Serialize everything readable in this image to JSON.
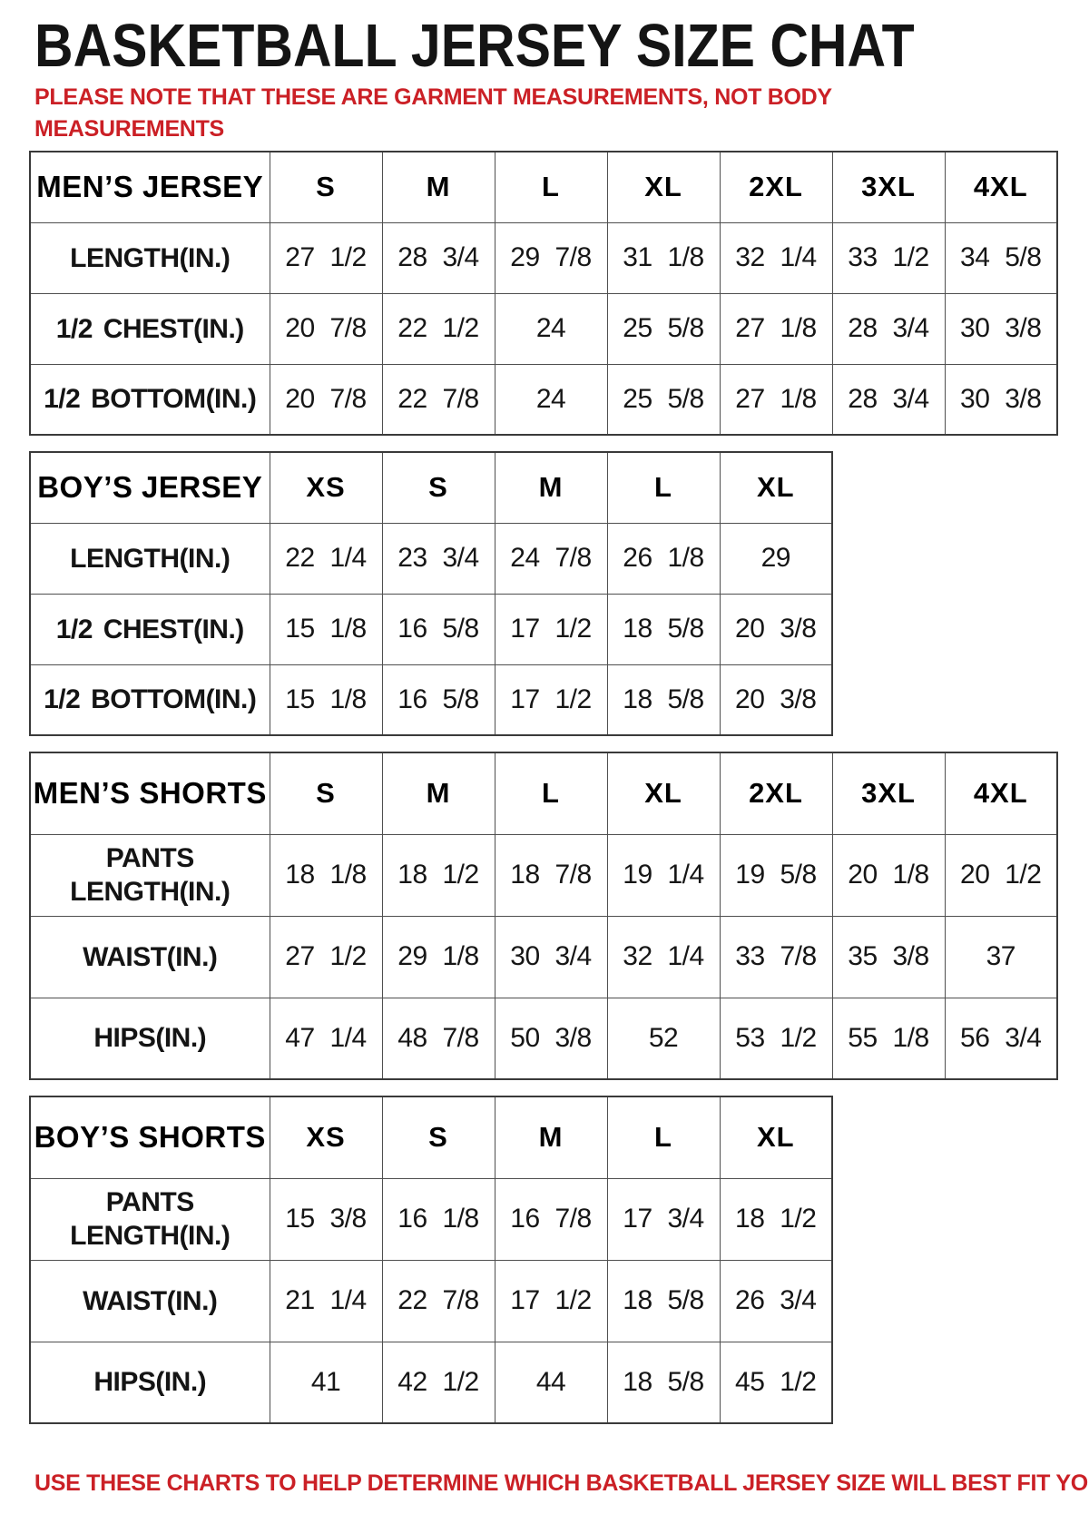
{
  "page": {
    "title": "BASKETBALL JERSEY SIZE CHAT",
    "note": "PLEASE NOTE THAT THESE ARE GARMENT MEASUREMENTS, NOT BODY MEASUREMENTS",
    "footer": "USE THESE CHARTS TO HELP DETERMINE WHICH BASKETBALL JERSEY SIZE WILL BEST FIT YOU.",
    "colors": {
      "header_bg": "#757575",
      "header_text": "#ffffff",
      "note_red": "#cb2026",
      "body_text": "#161616",
      "grid_line": "#4f4f4f"
    }
  },
  "tables": [
    {
      "title": "MEN’S JERSEY",
      "sizes": [
        "S",
        "M",
        "L",
        "XL",
        "2XL",
        "3XL",
        "4XL"
      ],
      "rows": [
        {
          "label": "LENGTH(IN.)",
          "values": [
            "27 1/2",
            "28 3/4",
            "29 7/8",
            "31 1/8",
            "32 1/4",
            "33 1/2",
            "34 5/8"
          ]
        },
        {
          "label": "1/2 CHEST(IN.)",
          "values": [
            "20 7/8",
            "22 1/2",
            "24",
            "25 5/8",
            "27 1/8",
            "28 3/4",
            "30 3/8"
          ]
        },
        {
          "label": "1/2 BOTTOM(IN.)",
          "values": [
            "20 7/8",
            "22 7/8",
            "24",
            "25 5/8",
            "27 1/8",
            "28 3/4",
            "30 3/8"
          ]
        }
      ]
    },
    {
      "title": "BOY’S JERSEY",
      "sizes": [
        "XS",
        "S",
        "M",
        "L",
        "XL"
      ],
      "rows": [
        {
          "label": "LENGTH(IN.)",
          "values": [
            "22 1/4",
            "23 3/4",
            "24 7/8",
            "26 1/8",
            "29"
          ]
        },
        {
          "label": "1/2 CHEST(IN.)",
          "values": [
            "15 1/8",
            "16 5/8",
            "17 1/2",
            "18 5/8",
            "20 3/8"
          ]
        },
        {
          "label": "1/2 BOTTOM(IN.)",
          "values": [
            "15 1/8",
            "16 5/8",
            "17 1/2",
            "18 5/8",
            "20 3/8"
          ]
        }
      ]
    },
    {
      "title": "MEN’S SHORTS",
      "sizes": [
        "S",
        "M",
        "L",
        "XL",
        "2XL",
        "3XL",
        "4XL"
      ],
      "rows": [
        {
          "label": "PANTS LENGTH(IN.)",
          "values": [
            "18 1/8",
            "18 1/2",
            "18 7/8",
            "19 1/4",
            "19 5/8",
            "20 1/8",
            "20 1/2"
          ]
        },
        {
          "label": "WAIST(IN.)",
          "values": [
            "27 1/2",
            "29 1/8",
            "30 3/4",
            "32 1/4",
            "33 7/8",
            "35 3/8",
            "37"
          ]
        },
        {
          "label": "HIPS(IN.)",
          "values": [
            "47 1/4",
            "48 7/8",
            "50 3/8",
            "52",
            "53 1/2",
            "55 1/8",
            "56 3/4"
          ]
        }
      ]
    },
    {
      "title": "BOY’S SHORTS",
      "sizes": [
        "XS",
        "S",
        "M",
        "L",
        "XL"
      ],
      "rows": [
        {
          "label": "PANTS LENGTH(IN.)",
          "values": [
            "15 3/8",
            "16 1/8",
            "16 7/8",
            "17 3/4",
            "18 1/2"
          ]
        },
        {
          "label": "WAIST(IN.)",
          "values": [
            "21 1/4",
            "22 7/8",
            "17 1/2",
            "18 5/8",
            "26 3/4"
          ]
        },
        {
          "label": "HIPS(IN.)",
          "values": [
            "41",
            "42 1/2",
            "44",
            "18 5/8",
            "45 1/2"
          ]
        }
      ]
    }
  ]
}
